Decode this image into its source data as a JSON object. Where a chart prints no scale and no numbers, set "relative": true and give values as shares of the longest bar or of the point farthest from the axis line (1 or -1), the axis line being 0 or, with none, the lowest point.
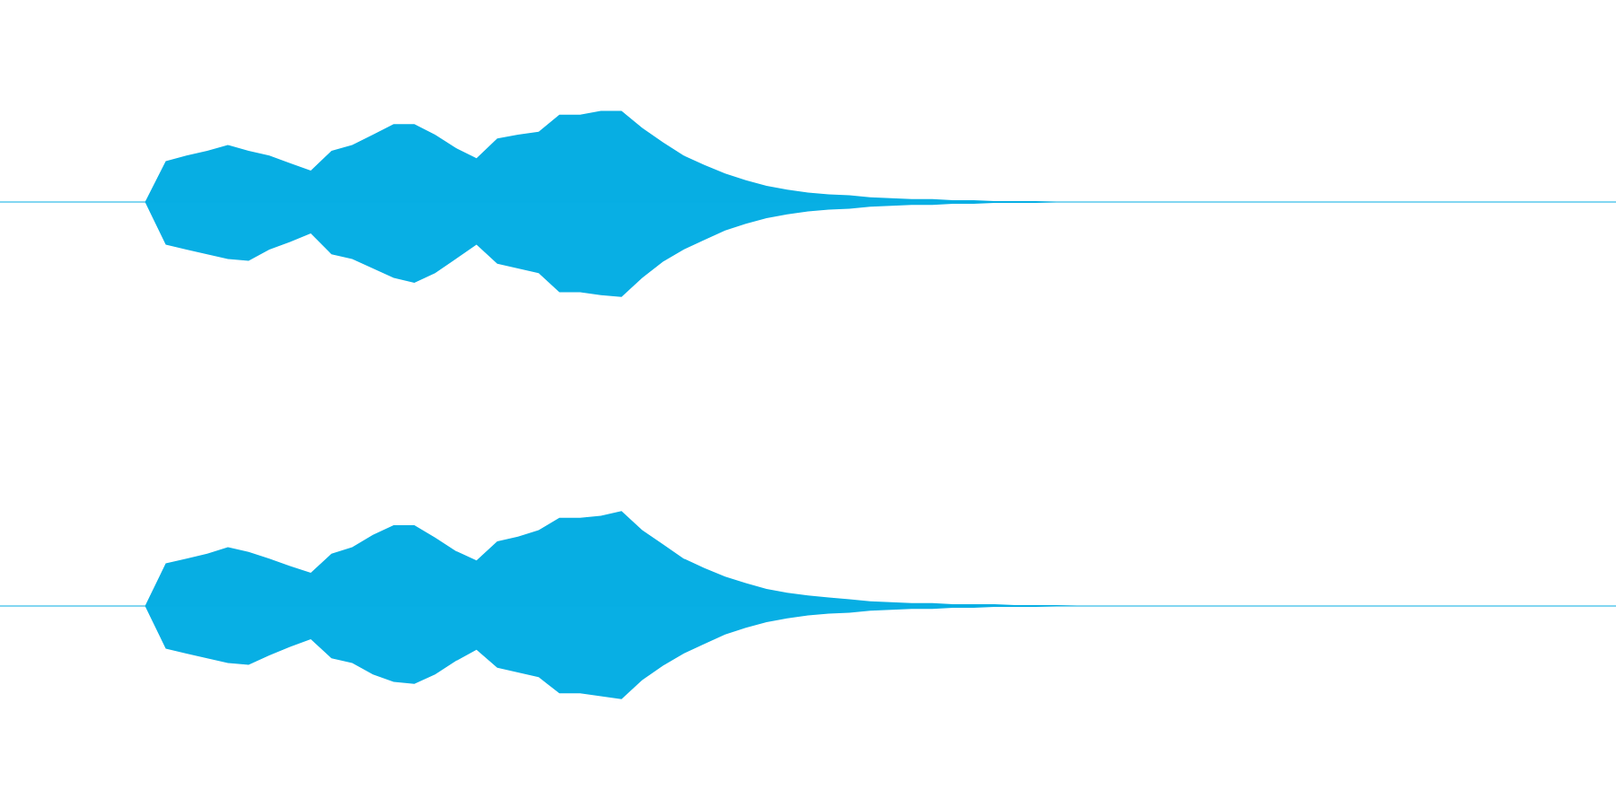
{
  "chart_data": [
    {
      "type": "area",
      "relative": true,
      "categories": [
        null,
        null,
        null,
        null,
        null,
        null,
        null,
        null,
        null,
        null,
        null,
        null,
        null,
        null,
        null,
        null,
        null,
        null,
        null,
        null,
        null,
        null,
        null,
        null,
        null,
        null,
        null,
        null,
        null,
        null,
        null,
        null,
        null,
        null,
        null,
        null,
        null,
        null,
        null,
        null,
        null,
        null,
        null,
        null,
        null,
        null,
        null,
        null,
        null,
        null,
        null,
        null,
        null,
        null,
        null,
        null,
        null,
        null,
        null,
        null,
        null,
        null,
        null,
        null,
        null,
        null,
        null,
        null,
        null,
        null,
        null,
        null,
        null,
        null,
        null,
        null,
        null,
        null,
        null
      ],
      "series": [
        {
          "color": "#07aee3",
          "values": [
            0,
            0,
            0,
            0,
            0,
            0,
            0,
            0,
            0.43,
            0.49,
            0.54,
            0.6,
            0.54,
            0.49,
            0.41,
            0.33,
            0.54,
            0.6,
            0.71,
            0.82,
            0.82,
            0.71,
            0.57,
            0.46,
            0.67,
            0.71,
            0.74,
            0.92,
            0.92,
            0.96,
            0.96,
            0.78,
            0.63,
            0.49,
            0.39,
            0.3,
            0.23,
            0.17,
            0.13,
            0.1,
            0.08,
            0.07,
            0.05,
            0.04,
            0.03,
            0.03,
            0.02,
            0.02,
            0.01,
            0.01,
            0.01,
            0,
            0,
            0,
            0,
            0,
            0,
            0,
            0,
            0,
            0,
            0,
            0,
            0,
            0,
            0,
            0,
            0,
            0,
            0,
            0,
            0,
            0,
            0,
            0,
            0,
            0,
            0,
            0
          ]
        },
        {
          "color": "#08afe4",
          "values": [
            0,
            0,
            0,
            0,
            0,
            0,
            0,
            0,
            -0.45,
            -0.5,
            -0.55,
            -0.6,
            -0.62,
            -0.5,
            -0.42,
            -0.33,
            -0.55,
            -0.6,
            -0.7,
            -0.8,
            -0.85,
            -0.75,
            -0.6,
            -0.45,
            -0.65,
            -0.7,
            -0.75,
            -0.95,
            -0.95,
            -0.98,
            -1,
            -0.8,
            -0.63,
            -0.5,
            -0.4,
            -0.3,
            -0.23,
            -0.17,
            -0.13,
            -0.1,
            -0.08,
            -0.07,
            -0.05,
            -0.04,
            -0.03,
            -0.03,
            -0.02,
            -0.02,
            -0.01,
            -0.01,
            -0.01,
            0,
            0,
            0,
            0,
            0,
            0,
            0,
            0,
            0,
            0,
            0,
            0,
            0,
            0,
            0,
            0,
            0,
            0,
            0,
            0,
            0,
            0,
            0,
            0,
            0,
            0,
            0,
            0
          ]
        }
      ]
    },
    {
      "type": "area",
      "relative": true,
      "categories": [
        null,
        null,
        null,
        null,
        null,
        null,
        null,
        null,
        null,
        null,
        null,
        null,
        null,
        null,
        null,
        null,
        null,
        null,
        null,
        null,
        null,
        null,
        null,
        null,
        null,
        null,
        null,
        null,
        null,
        null,
        null,
        null,
        null,
        null,
        null,
        null,
        null,
        null,
        null,
        null,
        null,
        null,
        null,
        null,
        null,
        null,
        null,
        null,
        null,
        null,
        null,
        null,
        null,
        null,
        null,
        null,
        null,
        null,
        null,
        null,
        null,
        null,
        null,
        null,
        null,
        null,
        null,
        null,
        null,
        null,
        null,
        null,
        null,
        null,
        null,
        null,
        null,
        null,
        null
      ],
      "series": [
        {
          "color": "#07aee3",
          "values": [
            0,
            0,
            0,
            0,
            0,
            0,
            0,
            0,
            0.45,
            0.5,
            0.55,
            0.62,
            0.57,
            0.5,
            0.42,
            0.35,
            0.55,
            0.62,
            0.75,
            0.85,
            0.85,
            0.72,
            0.58,
            0.48,
            0.68,
            0.73,
            0.8,
            0.93,
            0.93,
            0.95,
            1,
            0.8,
            0.65,
            0.5,
            0.4,
            0.31,
            0.24,
            0.18,
            0.14,
            0.11,
            0.09,
            0.07,
            0.05,
            0.04,
            0.03,
            0.03,
            0.02,
            0.02,
            0.02,
            0.01,
            0.01,
            0.01,
            0,
            0,
            0,
            0,
            0,
            0,
            0,
            0,
            0,
            0,
            0,
            0,
            0,
            0,
            0,
            0,
            0,
            0,
            0,
            0,
            0,
            0,
            0,
            0,
            0,
            0,
            0
          ]
        },
        {
          "color": "#08afe4",
          "values": [
            0,
            0,
            0,
            0,
            0,
            0,
            0,
            0,
            -0.45,
            -0.5,
            -0.55,
            -0.6,
            -0.62,
            -0.52,
            -0.43,
            -0.35,
            -0.55,
            -0.6,
            -0.72,
            -0.8,
            -0.82,
            -0.72,
            -0.58,
            -0.46,
            -0.65,
            -0.7,
            -0.75,
            -0.92,
            -0.92,
            -0.95,
            -0.98,
            -0.78,
            -0.63,
            -0.5,
            -0.4,
            -0.3,
            -0.23,
            -0.17,
            -0.13,
            -0.1,
            -0.08,
            -0.07,
            -0.05,
            -0.04,
            -0.03,
            -0.03,
            -0.02,
            -0.02,
            -0.01,
            -0.01,
            -0.01,
            0,
            0,
            0,
            0,
            0,
            0,
            0,
            0,
            0,
            0,
            0,
            0,
            0,
            0,
            0,
            0,
            0,
            0,
            0,
            0,
            0,
            0,
            0,
            0,
            0,
            0,
            0,
            0
          ]
        }
      ]
    }
  ]
}
